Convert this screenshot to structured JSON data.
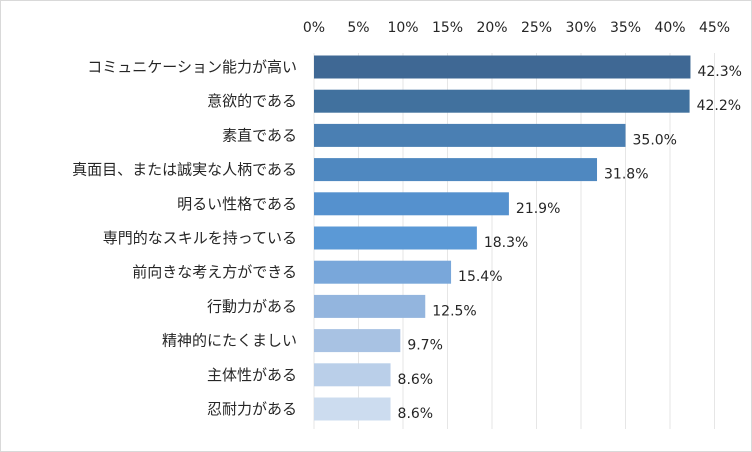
{
  "chart_data": {
    "type": "bar",
    "orientation": "horizontal",
    "title": "",
    "xlabel": "",
    "ylabel": "",
    "xlim": [
      0,
      45
    ],
    "x_ticks": [
      "0%",
      "5%",
      "10%",
      "15%",
      "20%",
      "25%",
      "30%",
      "35%",
      "40%",
      "45%"
    ],
    "x_tick_values": [
      0,
      5,
      10,
      15,
      20,
      25,
      30,
      35,
      40,
      45
    ],
    "grid": true,
    "legend": "none",
    "categories": [
      "コミュニケーション能力が高い",
      "意欲的である",
      "素直である",
      "真面目、または誠実な人柄である",
      "明るい性格である",
      "専門的なスキルを持っている",
      "前向きな考え方ができる",
      "行動力がある",
      "精神的にたくましい",
      "主体性がある",
      "忍耐力がある"
    ],
    "values": [
      42.3,
      42.2,
      35.0,
      31.8,
      21.9,
      18.3,
      15.4,
      12.5,
      9.7,
      8.6,
      8.6
    ],
    "value_labels": [
      "42.3%",
      "42.2%",
      "35.0%",
      "31.8%",
      "21.9%",
      "18.3%",
      "15.4%",
      "12.5%",
      "9.7%",
      "8.6%",
      "8.6%"
    ],
    "bar_colors": [
      "#3f6894",
      "#41719e",
      "#4a7fb3",
      "#4f88c0",
      "#5591ce",
      "#5b99d6",
      "#79a7da",
      "#93b5de",
      "#a8c2e3",
      "#bacfe9",
      "#ccdcef"
    ]
  }
}
